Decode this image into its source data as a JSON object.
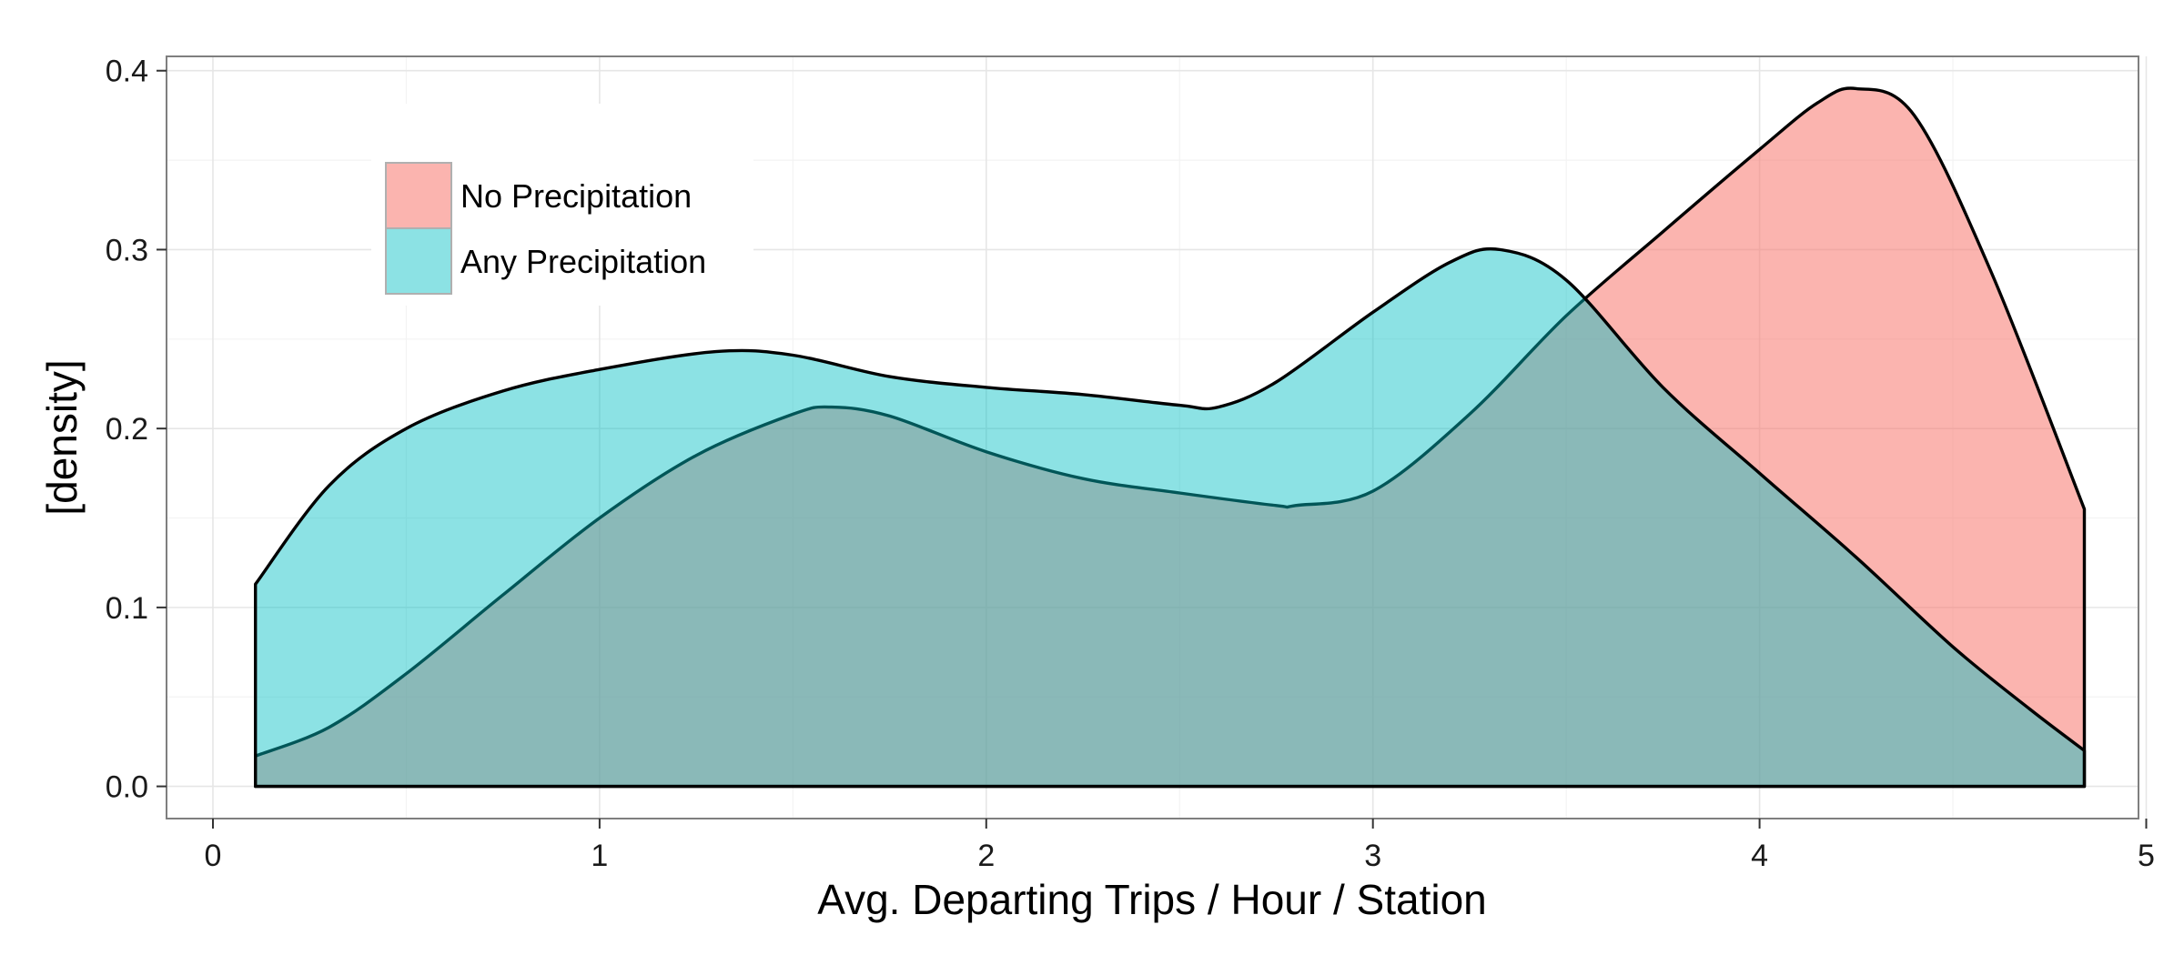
{
  "chart_data": {
    "type": "area",
    "subtype": "density",
    "xlabel": "Avg. Departing Trips / Hour / Station",
    "ylabel": "[density]",
    "xlim": [
      -0.12,
      4.98
    ],
    "ylim": [
      -0.018,
      0.408
    ],
    "x_ticks": [
      0,
      1,
      2,
      3,
      4,
      5
    ],
    "x_tick_labels": [
      "0",
      "1",
      "2",
      "3",
      "4",
      "5"
    ],
    "y_ticks": [
      0.0,
      0.1,
      0.2,
      0.3,
      0.4
    ],
    "y_tick_labels": [
      "0.0",
      "0.1",
      "0.2",
      "0.3",
      "0.4"
    ],
    "grid": true,
    "legend_position": "top-left",
    "series": [
      {
        "name": "No Precipitation",
        "color": "#F8766D",
        "x": [
          0.11,
          0.3,
          0.5,
          0.75,
          1.0,
          1.25,
          1.5,
          1.6,
          1.75,
          2.0,
          2.25,
          2.5,
          2.75,
          2.8,
          3.0,
          3.25,
          3.5,
          3.75,
          4.0,
          4.15,
          4.25,
          4.4,
          4.6,
          4.84
        ],
        "values": [
          0.017,
          0.033,
          0.063,
          0.107,
          0.15,
          0.185,
          0.208,
          0.212,
          0.207,
          0.187,
          0.172,
          0.164,
          0.157,
          0.157,
          0.165,
          0.208,
          0.263,
          0.31,
          0.356,
          0.382,
          0.39,
          0.375,
          0.287,
          0.155
        ]
      },
      {
        "name": "Any Precipitation",
        "color": "#00BFC4",
        "x": [
          0.11,
          0.3,
          0.5,
          0.75,
          1.0,
          1.3,
          1.5,
          1.75,
          2.0,
          2.25,
          2.5,
          2.6,
          2.75,
          3.0,
          3.2,
          3.33,
          3.5,
          3.75,
          4.0,
          4.25,
          4.5,
          4.7,
          4.84
        ],
        "values": [
          0.113,
          0.168,
          0.2,
          0.221,
          0.233,
          0.243,
          0.241,
          0.229,
          0.223,
          0.219,
          0.213,
          0.212,
          0.226,
          0.265,
          0.293,
          0.3,
          0.283,
          0.223,
          0.175,
          0.128,
          0.078,
          0.043,
          0.02
        ]
      }
    ]
  }
}
